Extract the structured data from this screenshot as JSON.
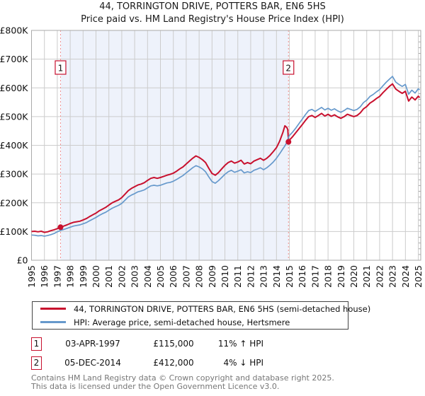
{
  "chart_data": {
    "type": "line",
    "title": "44, TORRINGTON DRIVE, POTTERS BAR, EN6 5HS",
    "subtitle": "Price paid vs. HM Land Registry's House Price Index (HPI)",
    "xlabel": "",
    "ylabel": "",
    "grid": true,
    "grid_color": "#cccccc",
    "frame_color": "#aaaaaa",
    "marker_line_color": "#f09090",
    "xlim": [
      1995,
      2025.19
    ],
    "ylim": [
      0,
      800000
    ],
    "x_ticks": [
      1995,
      1996,
      1997,
      1998,
      1999,
      2000,
      2001,
      2002,
      2003,
      2004,
      2005,
      2006,
      2007,
      2008,
      2009,
      2010,
      2011,
      2012,
      2013,
      2014,
      2015,
      2016,
      2017,
      2018,
      2019,
      2020,
      2021,
      2022,
      2023,
      2024,
      2025
    ],
    "y_ticks": [
      {
        "value": 0,
        "label": "£0"
      },
      {
        "value": 100000,
        "label": "£100K"
      },
      {
        "value": 200000,
        "label": "£200K"
      },
      {
        "value": 300000,
        "label": "£300K"
      },
      {
        "value": 400000,
        "label": "£400K"
      },
      {
        "value": 500000,
        "label": "£500K"
      },
      {
        "value": 600000,
        "label": "£600K"
      },
      {
        "value": 700000,
        "label": "£700K"
      },
      {
        "value": 800000,
        "label": "£800K"
      }
    ],
    "shaded_region": {
      "from": 1997.25,
      "to": 2014.93,
      "color": "#eef2fb"
    },
    "markers": [
      {
        "n": "1",
        "x": 1997.25,
        "y": 115000
      },
      {
        "n": "2",
        "x": 2014.93,
        "y": 412000
      }
    ],
    "values_unit": "GBP thousands",
    "series": [
      {
        "name": "price-paid",
        "color": "#c8102e",
        "width": 2,
        "points": [
          [
            1995,
            100
          ],
          [
            1995.25,
            101
          ],
          [
            1995.5,
            99
          ],
          [
            1995.75,
            101
          ],
          [
            1996,
            97
          ],
          [
            1996.25,
            99
          ],
          [
            1996.5,
            103
          ],
          [
            1996.75,
            106
          ],
          [
            1997,
            110
          ],
          [
            1997.25,
            115
          ],
          [
            1997.5,
            119
          ],
          [
            1997.75,
            123
          ],
          [
            1998,
            128
          ],
          [
            1998.25,
            132
          ],
          [
            1998.5,
            134
          ],
          [
            1998.75,
            136
          ],
          [
            1999,
            140
          ],
          [
            1999.25,
            145
          ],
          [
            1999.5,
            152
          ],
          [
            1999.75,
            158
          ],
          [
            2000,
            164
          ],
          [
            2000.25,
            172
          ],
          [
            2000.5,
            178
          ],
          [
            2000.75,
            184
          ],
          [
            2001,
            192
          ],
          [
            2001.25,
            200
          ],
          [
            2001.5,
            205
          ],
          [
            2001.75,
            210
          ],
          [
            2002,
            218
          ],
          [
            2002.25,
            230
          ],
          [
            2002.5,
            242
          ],
          [
            2002.75,
            250
          ],
          [
            2003,
            256
          ],
          [
            2003.25,
            262
          ],
          [
            2003.5,
            265
          ],
          [
            2003.75,
            270
          ],
          [
            2004,
            278
          ],
          [
            2004.25,
            285
          ],
          [
            2004.5,
            288
          ],
          [
            2004.75,
            285
          ],
          [
            2005,
            288
          ],
          [
            2005.25,
            292
          ],
          [
            2005.5,
            296
          ],
          [
            2005.75,
            299
          ],
          [
            2006,
            303
          ],
          [
            2006.25,
            310
          ],
          [
            2006.5,
            318
          ],
          [
            2006.75,
            325
          ],
          [
            2007,
            335
          ],
          [
            2007.25,
            345
          ],
          [
            2007.5,
            355
          ],
          [
            2007.75,
            363
          ],
          [
            2008,
            358
          ],
          [
            2008.25,
            350
          ],
          [
            2008.5,
            340
          ],
          [
            2008.75,
            320
          ],
          [
            2009,
            302
          ],
          [
            2009.25,
            296
          ],
          [
            2009.5,
            305
          ],
          [
            2009.75,
            318
          ],
          [
            2010,
            330
          ],
          [
            2010.25,
            340
          ],
          [
            2010.5,
            345
          ],
          [
            2010.75,
            338
          ],
          [
            2011,
            342
          ],
          [
            2011.25,
            348
          ],
          [
            2011.5,
            335
          ],
          [
            2011.75,
            340
          ],
          [
            2012,
            336
          ],
          [
            2012.25,
            345
          ],
          [
            2012.5,
            350
          ],
          [
            2012.75,
            355
          ],
          [
            2013,
            348
          ],
          [
            2013.25,
            355
          ],
          [
            2013.5,
            365
          ],
          [
            2013.75,
            378
          ],
          [
            2014,
            392
          ],
          [
            2014.25,
            415
          ],
          [
            2014.5,
            445
          ],
          [
            2014.65,
            468
          ],
          [
            2014.8,
            462
          ],
          [
            2014.88,
            455
          ],
          [
            2014.93,
            412
          ],
          [
            2015,
            418
          ],
          [
            2015.25,
            430
          ],
          [
            2015.5,
            444
          ],
          [
            2015.75,
            458
          ],
          [
            2016,
            472
          ],
          [
            2016.25,
            487
          ],
          [
            2016.5,
            500
          ],
          [
            2016.75,
            504
          ],
          [
            2017,
            497
          ],
          [
            2017.25,
            504
          ],
          [
            2017.5,
            511
          ],
          [
            2017.75,
            502
          ],
          [
            2018,
            508
          ],
          [
            2018.25,
            501
          ],
          [
            2018.5,
            506
          ],
          [
            2018.75,
            499
          ],
          [
            2019,
            494
          ],
          [
            2019.25,
            500
          ],
          [
            2019.5,
            508
          ],
          [
            2019.75,
            504
          ],
          [
            2020,
            500
          ],
          [
            2020.25,
            504
          ],
          [
            2020.5,
            513
          ],
          [
            2020.75,
            527
          ],
          [
            2021,
            535
          ],
          [
            2021.25,
            547
          ],
          [
            2021.5,
            554
          ],
          [
            2021.75,
            563
          ],
          [
            2022,
            570
          ],
          [
            2022.25,
            583
          ],
          [
            2022.5,
            594
          ],
          [
            2022.75,
            605
          ],
          [
            2023,
            614
          ],
          [
            2023.25,
            596
          ],
          [
            2023.5,
            588
          ],
          [
            2023.75,
            581
          ],
          [
            2024,
            588
          ],
          [
            2024.25,
            554
          ],
          [
            2024.5,
            568
          ],
          [
            2024.75,
            558
          ],
          [
            2025,
            571
          ],
          [
            2025.1,
            566
          ]
        ]
      },
      {
        "name": "hpi",
        "color": "#6699cc",
        "width": 1.7,
        "points": [
          [
            1995,
            88
          ],
          [
            1995.25,
            87
          ],
          [
            1995.5,
            85
          ],
          [
            1995.75,
            86
          ],
          [
            1996,
            84
          ],
          [
            1996.25,
            86
          ],
          [
            1996.5,
            89
          ],
          [
            1996.75,
            93
          ],
          [
            1997,
            99
          ],
          [
            1997.25,
            104
          ],
          [
            1997.5,
            107
          ],
          [
            1997.75,
            111
          ],
          [
            1998,
            115
          ],
          [
            1998.25,
            119
          ],
          [
            1998.5,
            121
          ],
          [
            1998.75,
            123
          ],
          [
            1999,
            127
          ],
          [
            1999.25,
            131
          ],
          [
            1999.5,
            137
          ],
          [
            1999.75,
            143
          ],
          [
            2000,
            149
          ],
          [
            2000.25,
            156
          ],
          [
            2000.5,
            162
          ],
          [
            2000.75,
            167
          ],
          [
            2001,
            174
          ],
          [
            2001.25,
            181
          ],
          [
            2001.5,
            186
          ],
          [
            2001.75,
            191
          ],
          [
            2002,
            198
          ],
          [
            2002.25,
            209
          ],
          [
            2002.5,
            220
          ],
          [
            2002.75,
            227
          ],
          [
            2003,
            232
          ],
          [
            2003.25,
            238
          ],
          [
            2003.5,
            241
          ],
          [
            2003.75,
            245
          ],
          [
            2004,
            252
          ],
          [
            2004.25,
            259
          ],
          [
            2004.5,
            261
          ],
          [
            2004.75,
            259
          ],
          [
            2005,
            261
          ],
          [
            2005.25,
            265
          ],
          [
            2005.5,
            269
          ],
          [
            2005.75,
            271
          ],
          [
            2006,
            275
          ],
          [
            2006.25,
            281
          ],
          [
            2006.5,
            288
          ],
          [
            2006.75,
            295
          ],
          [
            2007,
            304
          ],
          [
            2007.25,
            313
          ],
          [
            2007.5,
            322
          ],
          [
            2007.75,
            329
          ],
          [
            2008,
            325
          ],
          [
            2008.25,
            318
          ],
          [
            2008.5,
            308
          ],
          [
            2008.75,
            290
          ],
          [
            2009,
            274
          ],
          [
            2009.25,
            268
          ],
          [
            2009.5,
            277
          ],
          [
            2009.75,
            288
          ],
          [
            2010,
            299
          ],
          [
            2010.25,
            308
          ],
          [
            2010.5,
            313
          ],
          [
            2010.75,
            306
          ],
          [
            2011,
            310
          ],
          [
            2011.25,
            315
          ],
          [
            2011.5,
            304
          ],
          [
            2011.75,
            308
          ],
          [
            2012,
            305
          ],
          [
            2012.25,
            313
          ],
          [
            2012.5,
            317
          ],
          [
            2012.75,
            322
          ],
          [
            2013,
            315
          ],
          [
            2013.25,
            322
          ],
          [
            2013.5,
            331
          ],
          [
            2013.75,
            342
          ],
          [
            2014,
            355
          ],
          [
            2014.25,
            371
          ],
          [
            2014.5,
            388
          ],
          [
            2014.65,
            398
          ],
          [
            2014.8,
            410
          ],
          [
            2014.93,
            429
          ],
          [
            2015,
            434
          ],
          [
            2015.25,
            446
          ],
          [
            2015.5,
            460
          ],
          [
            2015.75,
            476
          ],
          [
            2016,
            491
          ],
          [
            2016.25,
            507
          ],
          [
            2016.5,
            521
          ],
          [
            2016.75,
            525
          ],
          [
            2017,
            518
          ],
          [
            2017.25,
            525
          ],
          [
            2017.5,
            532
          ],
          [
            2017.75,
            523
          ],
          [
            2018,
            529
          ],
          [
            2018.25,
            522
          ],
          [
            2018.5,
            527
          ],
          [
            2018.75,
            520
          ],
          [
            2019,
            515
          ],
          [
            2019.25,
            521
          ],
          [
            2019.5,
            529
          ],
          [
            2019.75,
            525
          ],
          [
            2020,
            521
          ],
          [
            2020.25,
            525
          ],
          [
            2020.5,
            534
          ],
          [
            2020.75,
            549
          ],
          [
            2021,
            557
          ],
          [
            2021.25,
            570
          ],
          [
            2021.5,
            577
          ],
          [
            2021.75,
            586
          ],
          [
            2022,
            594
          ],
          [
            2022.25,
            607
          ],
          [
            2022.5,
            619
          ],
          [
            2022.75,
            630
          ],
          [
            2023,
            640
          ],
          [
            2023.25,
            620
          ],
          [
            2023.5,
            612
          ],
          [
            2023.75,
            605
          ],
          [
            2024,
            612
          ],
          [
            2024.25,
            578
          ],
          [
            2024.5,
            592
          ],
          [
            2024.75,
            582
          ],
          [
            2025,
            597
          ],
          [
            2025.1,
            593
          ]
        ]
      }
    ],
    "legend_position": "bottom"
  },
  "legend": {
    "series1": {
      "label": "44, TORRINGTON DRIVE, POTTERS BAR, EN6 5HS (semi-detached house)",
      "color": "#c8102e"
    },
    "series2": {
      "label": "HPI: Average price, semi-detached house, Hertsmere",
      "color": "#6699cc"
    }
  },
  "transactions": [
    {
      "num": "1",
      "date": "03-APR-1997",
      "price": "£115,000",
      "hpi": "11% ↑ HPI"
    },
    {
      "num": "2",
      "date": "05-DEC-2014",
      "price": "£412,000",
      "hpi": "4% ↓ HPI"
    }
  ],
  "footer": {
    "line1": "Contains HM Land Registry data © Crown copyright and database right 2025.",
    "line2": "This data is licensed under the Open Government Licence v3.0."
  }
}
